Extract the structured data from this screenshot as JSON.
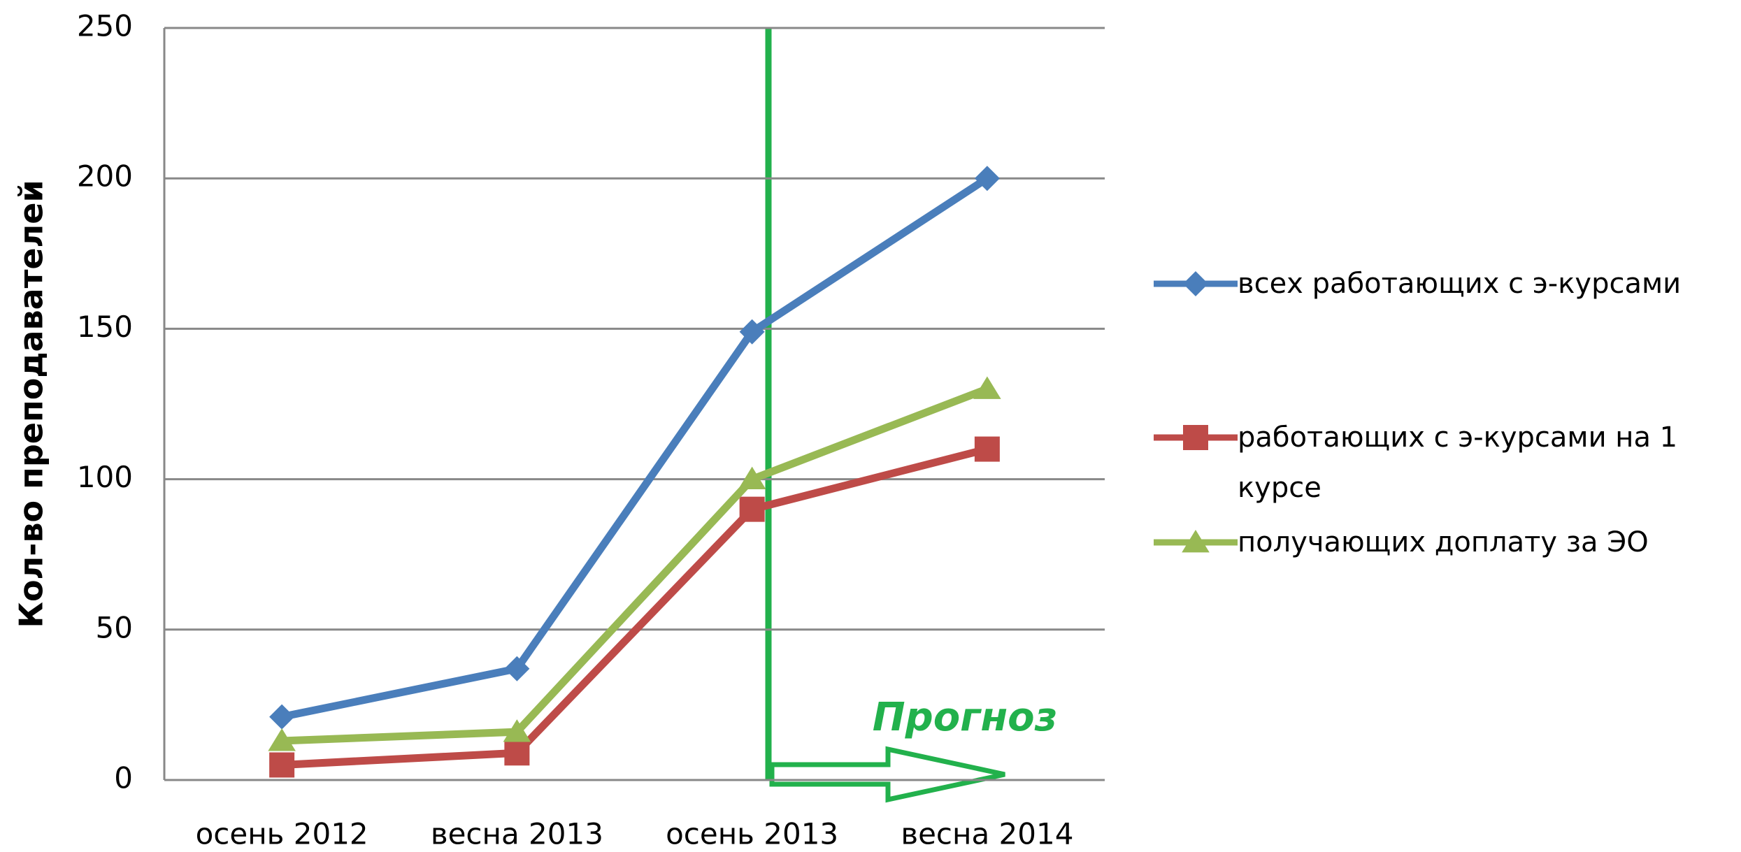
{
  "chart_data": {
    "type": "line",
    "y_label": "Кол-во преподавателей",
    "categories": [
      "осень 2012",
      "весна 2013",
      "осень 2013",
      "весна 2014"
    ],
    "series": [
      {
        "name": "всех работающих с э-курсами",
        "color": "#4a7ebb",
        "marker": "diamond",
        "values": [
          21,
          37,
          149,
          200
        ]
      },
      {
        "name": "работающих с э-курсами на 1 курсе",
        "color": "#be4b48",
        "marker": "square",
        "values": [
          5,
          9,
          90,
          110
        ]
      },
      {
        "name": "получающих доплату за ЭО",
        "color": "#98b954",
        "marker": "triangle",
        "values": [
          13,
          16,
          100,
          130
        ]
      }
    ],
    "ylim": [
      0,
      250
    ],
    "yticks": [
      0,
      50,
      100,
      150,
      200,
      250
    ],
    "grid": true,
    "annotation": "Прогноз"
  }
}
